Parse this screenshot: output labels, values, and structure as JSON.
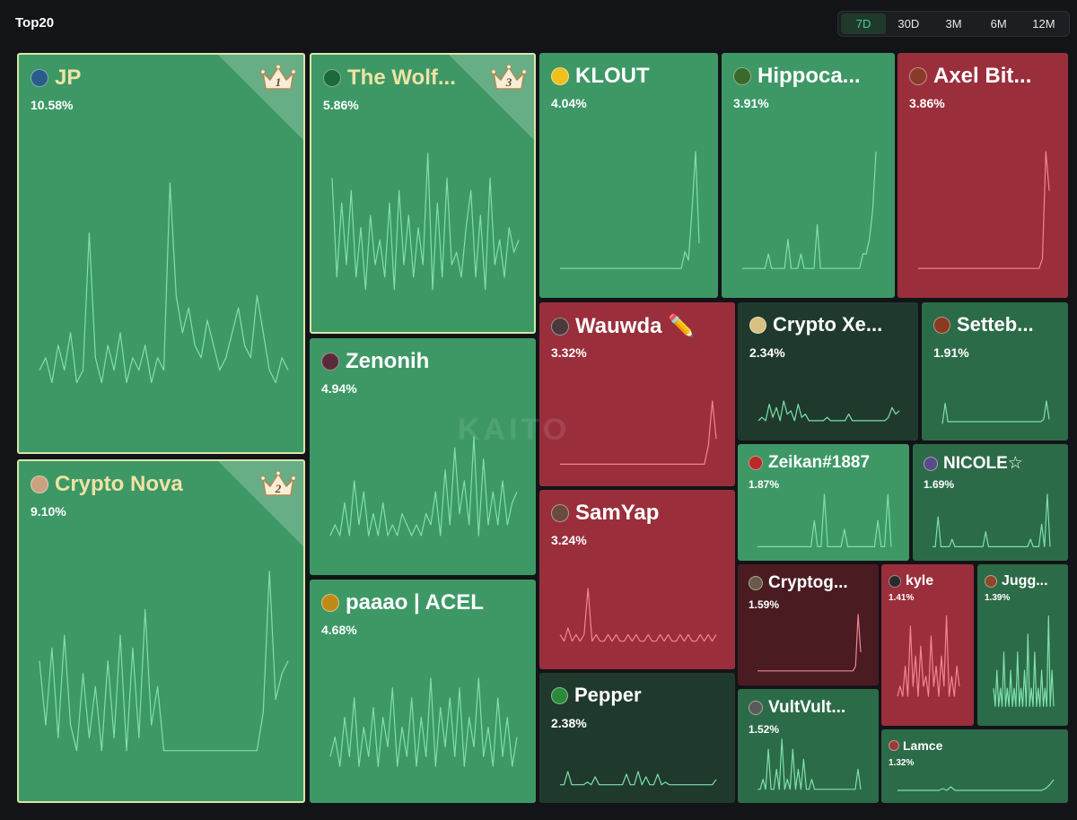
{
  "header": {
    "title": "Top20"
  },
  "range_tabs": {
    "items": [
      "7D",
      "30D",
      "3M",
      "6M",
      "12M"
    ],
    "selected": "7D"
  },
  "watermark": "KAITO",
  "colors": {
    "bright_green": "#3d9866",
    "mid_green": "#2c6b47",
    "dark_green": "#1f3a2d",
    "red": "#9a2f3b",
    "dark_red": "#4a1c22",
    "green_line": "#7ee0ad",
    "red_line": "#f08690",
    "active_tab": "#44d08a"
  },
  "chart_data": {
    "type": "treemap",
    "title": "Top20",
    "period": "7D",
    "items": [
      {
        "name": "JP",
        "share_pct": 10.58,
        "label": "10.58%",
        "rank": 1,
        "trend": "up",
        "avatar": "#2a5c8a",
        "spark": [
          3,
          4,
          2,
          5,
          3,
          6,
          2,
          3,
          14,
          4,
          2,
          5,
          3,
          6,
          2,
          4,
          3,
          5,
          2,
          4,
          3,
          18,
          9,
          6,
          8,
          5,
          4,
          7,
          5,
          3,
          4,
          6,
          8,
          5,
          4,
          9,
          6,
          3,
          2,
          4,
          3
        ]
      },
      {
        "name": "Crypto Nova",
        "share_pct": 9.1,
        "label": "9.10%",
        "rank": 2,
        "trend": "up",
        "avatar": "#c9a27e",
        "spark": [
          8,
          3,
          9,
          2,
          10,
          3,
          1,
          7,
          2,
          6,
          1,
          8,
          2,
          10,
          1,
          9,
          2,
          12,
          3,
          6,
          1,
          1,
          1,
          1,
          1,
          1,
          1,
          1,
          1,
          1,
          1,
          1,
          1,
          1,
          1,
          1,
          4,
          15,
          5,
          7,
          8
        ]
      },
      {
        "name": "The Wolf...",
        "share_pct": 5.86,
        "label": "5.86%",
        "rank": 3,
        "trend": "up",
        "avatar": "#1b6b3a",
        "spark": [
          10,
          2,
          8,
          3,
          9,
          2,
          6,
          1,
          7,
          3,
          5,
          2,
          8,
          1,
          9,
          3,
          7,
          2,
          6,
          3,
          12,
          1,
          8,
          2,
          10,
          3,
          4,
          2,
          6,
          9,
          2,
          7,
          1,
          10,
          3,
          5,
          2,
          6,
          4,
          5
        ]
      },
      {
        "name": "KLOUT",
        "share_pct": 4.04,
        "label": "4.04%",
        "trend": "up",
        "avatar": "#f0c020",
        "spark": [
          0,
          0,
          0,
          0,
          0,
          0,
          0,
          0,
          0,
          0,
          0,
          0,
          0,
          0,
          0,
          0,
          0,
          0,
          0,
          0,
          0,
          0,
          0,
          0,
          0,
          0,
          0,
          0,
          0,
          0,
          0,
          0,
          0,
          0,
          0,
          2,
          1,
          7,
          14,
          3
        ]
      },
      {
        "name": "Hippoca...",
        "share_pct": 3.91,
        "label": "3.91%",
        "trend": "up",
        "avatar": "#3a6a2a",
        "spark": [
          0,
          0,
          0,
          0,
          0,
          0,
          0,
          0,
          1,
          0,
          0,
          0,
          0,
          0,
          2,
          0,
          0,
          0,
          1,
          0,
          0,
          0,
          0,
          3,
          0,
          0,
          0,
          0,
          0,
          0,
          0,
          0,
          0,
          0,
          0,
          0,
          0,
          1,
          1,
          2,
          4,
          8
        ]
      },
      {
        "name": "Axel Bit...",
        "share_pct": 3.86,
        "label": "3.86%",
        "trend": "down",
        "avatar": "#8a3a28",
        "spark": [
          0,
          0,
          0,
          0,
          0,
          0,
          0,
          0,
          0,
          0,
          0,
          0,
          0,
          0,
          0,
          0,
          0,
          0,
          0,
          0,
          0,
          0,
          0,
          0,
          0,
          0,
          0,
          0,
          0,
          0,
          0,
          0,
          0,
          0,
          0,
          0,
          0,
          1,
          12,
          8
        ]
      },
      {
        "name": "Zenonih",
        "share_pct": 4.94,
        "label": "4.94%",
        "trend": "up",
        "avatar": "#5a2a3a",
        "spark": [
          1,
          2,
          1,
          4,
          1,
          6,
          2,
          5,
          1,
          3,
          1,
          4,
          1,
          2,
          1,
          3,
          2,
          1,
          2,
          1,
          3,
          2,
          5,
          1,
          7,
          2,
          9,
          3,
          6,
          2,
          10,
          1,
          8,
          2,
          5,
          2,
          6,
          2,
          4,
          5
        ]
      },
      {
        "name": "paaao | ACEL",
        "share_pct": 4.68,
        "label": "4.68%",
        "trend": "up",
        "avatar": "#c08a18",
        "spark": [
          2,
          4,
          1,
          6,
          2,
          8,
          1,
          5,
          2,
          7,
          1,
          6,
          3,
          9,
          1,
          5,
          2,
          8,
          1,
          6,
          2,
          10,
          1,
          7,
          3,
          8,
          2,
          9,
          1,
          6,
          3,
          10,
          2,
          5,
          1,
          8,
          2,
          6,
          1,
          4
        ]
      },
      {
        "name": "Wauwda ✏️",
        "share_pct": 3.32,
        "label": "3.32%",
        "trend": "down",
        "avatar": "#4a3a40",
        "spark": [
          0,
          0,
          0,
          0,
          0,
          0,
          0,
          0,
          0,
          0,
          0,
          0,
          0,
          0,
          0,
          0,
          0,
          0,
          0,
          0,
          0,
          0,
          0,
          0,
          0,
          0,
          0,
          0,
          0,
          0,
          0,
          0,
          0,
          0,
          0,
          0,
          0,
          0,
          3,
          10,
          4
        ]
      },
      {
        "name": "SamYap",
        "share_pct": 3.24,
        "label": "3.24%",
        "trend": "down",
        "avatar": "#6a4a3a",
        "spark": [
          2,
          1,
          3,
          1,
          2,
          1,
          2,
          9,
          1,
          2,
          1,
          1,
          2,
          1,
          2,
          1,
          1,
          2,
          1,
          2,
          1,
          1,
          2,
          1,
          1,
          2,
          1,
          2,
          1,
          1,
          2,
          1,
          2,
          1,
          1,
          2,
          1,
          2,
          1,
          2
        ]
      },
      {
        "name": "Pepper",
        "share_pct": 2.38,
        "label": "2.38%",
        "trend": "up",
        "avatar": "#2a8a3a",
        "spark": [
          1,
          1,
          6,
          1,
          1,
          1,
          1,
          2,
          1,
          4,
          1,
          1,
          1,
          1,
          1,
          1,
          1,
          5,
          1,
          1,
          6,
          1,
          4,
          1,
          1,
          5,
          1,
          2,
          1,
          1,
          1,
          1,
          1,
          1,
          1,
          1,
          1,
          1,
          1,
          1,
          3
        ]
      },
      {
        "name": "Crypto Xe...",
        "share_pct": 2.34,
        "label": "2.34%",
        "trend": "up",
        "avatar": "#d8c080",
        "spark": [
          1,
          2,
          1,
          6,
          2,
          5,
          1,
          7,
          3,
          4,
          1,
          6,
          2,
          3,
          1,
          1,
          1,
          1,
          1,
          2,
          1,
          1,
          1,
          1,
          1,
          3,
          1,
          1,
          1,
          1,
          1,
          1,
          1,
          1,
          1,
          1,
          2,
          5,
          3,
          4
        ]
      },
      {
        "name": "Setteb...",
        "share_pct": 1.91,
        "label": "1.91%",
        "trend": "up",
        "avatar": "#8a3a20",
        "spark": [
          0,
          9,
          1,
          1,
          1,
          1,
          1,
          1,
          1,
          1,
          1,
          1,
          1,
          1,
          1,
          1,
          1,
          1,
          1,
          1,
          1,
          1,
          1,
          1,
          1,
          1,
          1,
          1,
          1,
          1,
          1,
          1,
          1,
          1,
          1,
          1,
          1,
          2,
          10,
          2
        ]
      },
      {
        "name": "Zeikan#1887",
        "share_pct": 1.87,
        "label": "1.87%",
        "trend": "up",
        "avatar": "#b82a2a",
        "spark": [
          0,
          0,
          0,
          0,
          0,
          0,
          0,
          0,
          0,
          0,
          0,
          0,
          0,
          0,
          0,
          0,
          0,
          3,
          0,
          0,
          6,
          0,
          0,
          0,
          0,
          0,
          2,
          0,
          0,
          0,
          0,
          0,
          0,
          0,
          0,
          0,
          3,
          0,
          0,
          6,
          0
        ]
      },
      {
        "name": "NICOLE☆",
        "share_pct": 1.69,
        "label": "1.69%",
        "trend": "up",
        "avatar": "#5a4a8a",
        "spark": [
          0,
          0,
          4,
          0,
          0,
          0,
          0,
          1,
          0,
          0,
          0,
          0,
          0,
          0,
          0,
          0,
          0,
          0,
          0,
          2,
          0,
          0,
          0,
          0,
          0,
          0,
          0,
          0,
          0,
          0,
          0,
          0,
          0,
          0,
          0,
          1,
          0,
          0,
          0,
          3,
          0,
          7,
          0
        ]
      },
      {
        "name": "Cryptog...",
        "share_pct": 1.59,
        "label": "1.59%",
        "trend": "down",
        "avatar": "#6a5a4a",
        "spark": [
          0,
          0,
          0,
          0,
          0,
          0,
          0,
          0,
          0,
          0,
          0,
          0,
          0,
          0,
          0,
          0,
          0,
          0,
          0,
          0,
          0,
          0,
          0,
          0,
          0,
          0,
          0,
          0,
          0,
          0,
          0,
          0,
          0,
          0,
          0,
          0,
          0,
          0,
          1,
          12,
          4
        ]
      },
      {
        "name": "kyle",
        "share_pct": 1.41,
        "label": "1.41%",
        "trend": "down",
        "avatar": "#2a2a2a",
        "spark": [
          1,
          2,
          1,
          4,
          1,
          8,
          2,
          5,
          1,
          6,
          2,
          3,
          1,
          7,
          2,
          4,
          1,
          5,
          2,
          9,
          1,
          3,
          1,
          4,
          2
        ]
      },
      {
        "name": "Jugg...",
        "share_pct": 1.39,
        "label": "1.39%",
        "trend": "up",
        "avatar": "#8a4a2a",
        "spark": [
          1,
          0,
          2,
          0,
          1,
          0,
          3,
          0,
          1,
          0,
          2,
          0,
          1,
          0,
          3,
          0,
          1,
          0,
          2,
          0,
          4,
          0,
          1,
          0,
          3,
          0,
          1,
          0,
          2,
          0,
          1,
          0,
          5,
          0,
          2,
          0
        ]
      },
      {
        "name": "Lamce",
        "share_pct": 1.32,
        "label": "1.32%",
        "trend": "up",
        "avatar": "#9a3a3a",
        "spark": [
          0,
          0,
          0,
          0,
          0,
          0,
          0,
          0,
          0,
          0,
          0,
          1,
          0,
          2,
          0,
          0,
          0,
          0,
          0,
          0,
          0,
          0,
          0,
          0,
          0,
          0,
          0,
          0,
          0,
          0,
          0,
          0,
          0,
          0,
          0,
          0,
          1,
          3,
          6
        ]
      },
      {
        "name": "VultVult...",
        "share_pct": 1.52,
        "label": "1.52%",
        "trend": "up",
        "avatar": "#5a5a5a",
        "spark": [
          0,
          0,
          1,
          0,
          4,
          0,
          0,
          2,
          0,
          5,
          0,
          1,
          0,
          4,
          0,
          2,
          0,
          3,
          0,
          0,
          1,
          0,
          0,
          0,
          0,
          0,
          0,
          0,
          0,
          0,
          0,
          0,
          0,
          0,
          0,
          0,
          0,
          2,
          0
        ]
      }
    ]
  }
}
